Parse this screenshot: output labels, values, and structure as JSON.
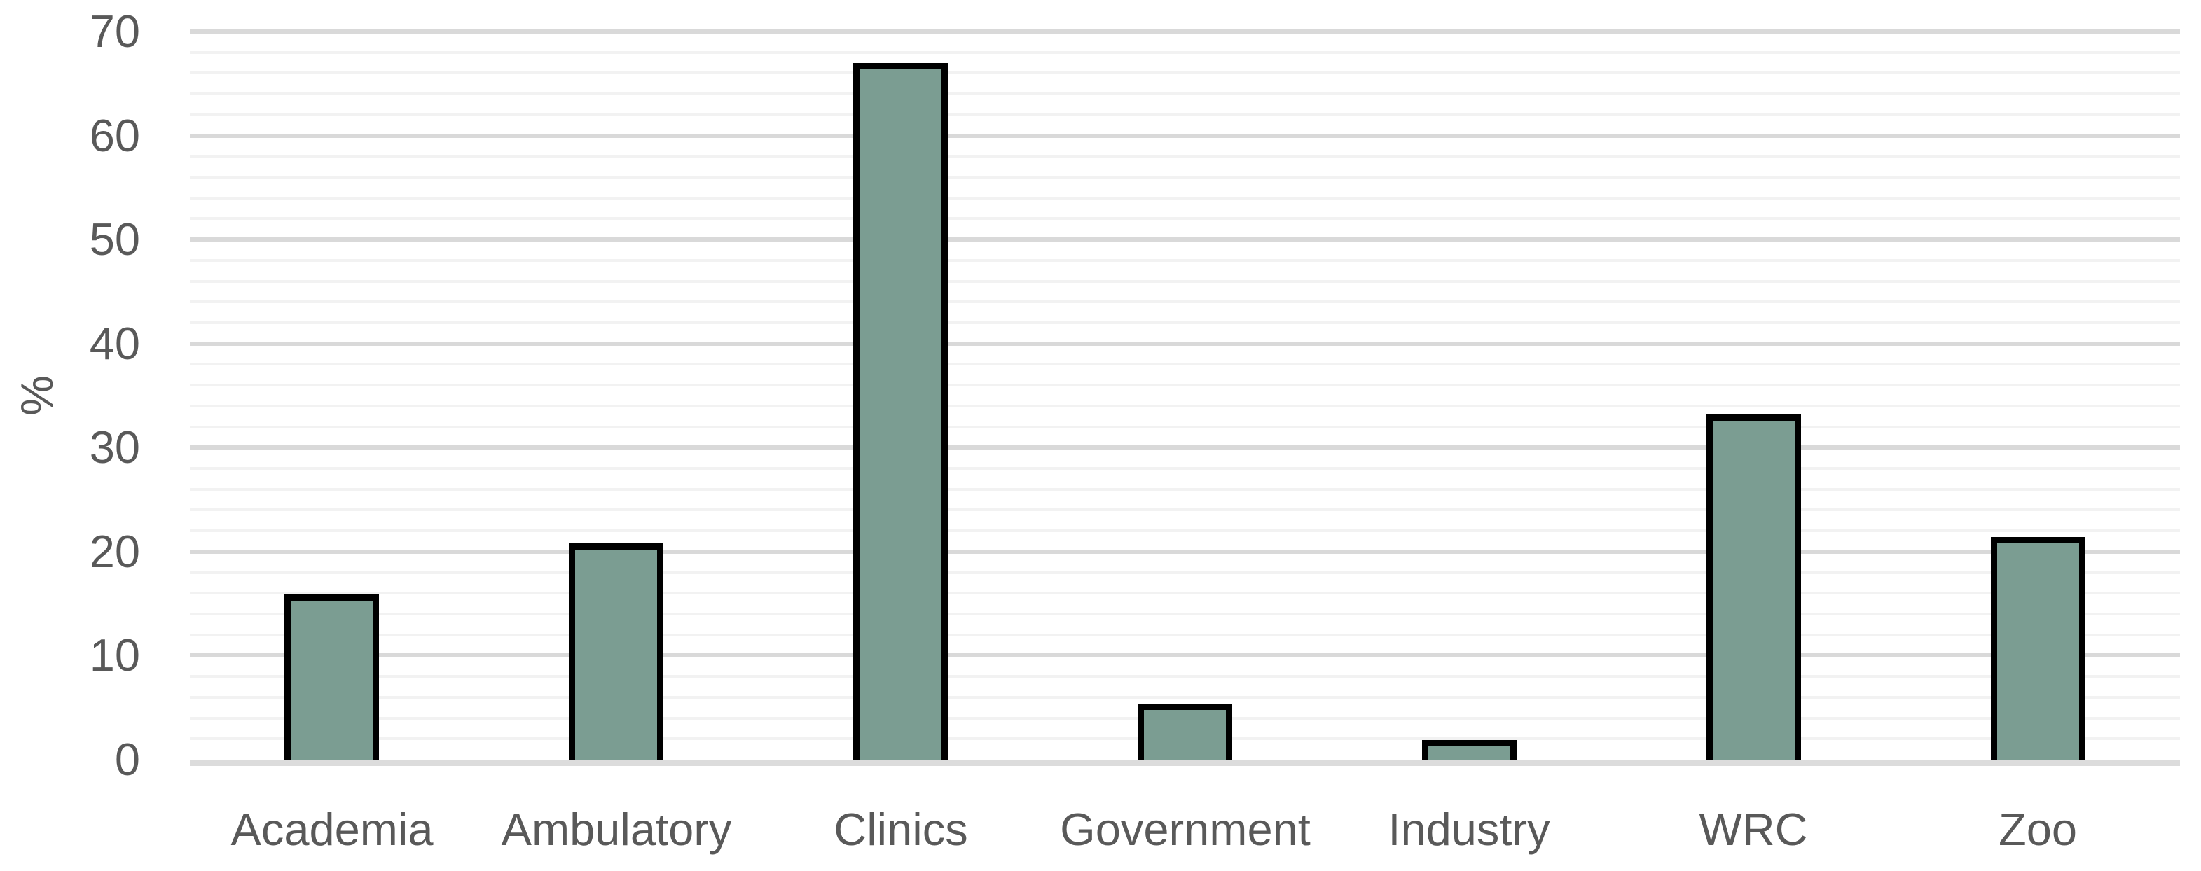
{
  "chart_data": {
    "type": "bar",
    "title": "",
    "categories": [
      "Academia",
      "Ambulatory",
      "Clinics",
      "Government",
      "Industry",
      "WRC",
      "Zoo"
    ],
    "values": [
      15.9,
      20.8,
      67.0,
      5.4,
      1.9,
      33.2,
      21.4
    ],
    "xlabel": "",
    "ylabel": "%",
    "ylim": [
      0,
      70
    ],
    "y_major_step": 10,
    "y_minor_step": 2,
    "y_tick_labels": [
      "0",
      "10",
      "20",
      "30",
      "40",
      "50",
      "60",
      "70"
    ],
    "grid": "major and minor horizontal gridlines",
    "legend": "none",
    "colors": {
      "bar_fill": "#7B9D92",
      "bar_border": "#000000",
      "major_gridline": "#D9D9D9",
      "minor_gridline": "#F2F2F2",
      "axis_line": "#DCDCDC",
      "text": "#595959",
      "background": "#FFFFFF"
    }
  }
}
